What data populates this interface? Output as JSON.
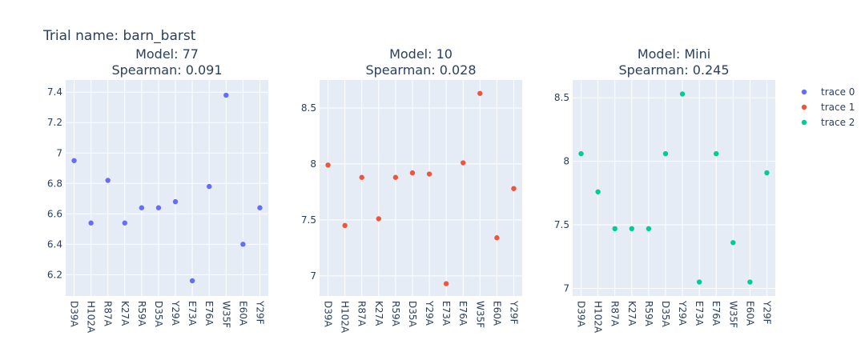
{
  "figure": {
    "title": "Trial name: barn_barst"
  },
  "colors": {
    "plot_bg": "#e5ecf6",
    "grid": "#ffffff",
    "text": "#2a3f5f"
  },
  "legend": {
    "placement": "right",
    "items": [
      {
        "label": "trace 0",
        "color": "#636efa"
      },
      {
        "label": "trace 1",
        "color": "#ef553b"
      },
      {
        "label": "trace 2",
        "color": "#00cc96"
      }
    ]
  },
  "chart_data": [
    {
      "type": "scatter",
      "title_line1": "Model: 77",
      "title_line2": "Spearman: 0.091",
      "series_name": "trace 0",
      "color": "#636efa",
      "categories": [
        "D39A",
        "H102A",
        "R87A",
        "K27A",
        "R59A",
        "D35A",
        "Y29A",
        "E73A",
        "E76A",
        "W35F",
        "E60A",
        "Y29F"
      ],
      "values": [
        6.95,
        6.54,
        6.82,
        6.54,
        6.64,
        6.64,
        6.68,
        6.16,
        6.78,
        7.38,
        6.4,
        6.64
      ],
      "ylim": [
        6.06,
        7.48
      ],
      "yticks": [
        6.2,
        6.4,
        6.6,
        6.8,
        7,
        7.2,
        7.4
      ],
      "ytick_labels": [
        "6.2",
        "6.4",
        "6.6",
        "6.8",
        "7",
        "7.2",
        "7.4"
      ],
      "grid": true
    },
    {
      "type": "scatter",
      "title_line1": "Model: 10",
      "title_line2": "Spearman: 0.028",
      "series_name": "trace 1",
      "color": "#ef553b",
      "categories": [
        "D39A",
        "H102A",
        "R87A",
        "K27A",
        "R59A",
        "D35A",
        "Y29A",
        "E73A",
        "E76A",
        "W35F",
        "E60A",
        "Y29F"
      ],
      "values": [
        7.99,
        7.45,
        7.88,
        7.51,
        7.88,
        7.92,
        7.91,
        6.93,
        8.01,
        8.63,
        7.34,
        7.78
      ],
      "ylim": [
        6.82,
        8.75
      ],
      "yticks": [
        7,
        7.5,
        8,
        8.5
      ],
      "ytick_labels": [
        "7",
        "7.5",
        "8",
        "8.5"
      ],
      "grid": true
    },
    {
      "type": "scatter",
      "title_line1": "Model: Mini",
      "title_line2": "Spearman: 0.245",
      "series_name": "trace 2",
      "color": "#00cc96",
      "categories": [
        "D39A",
        "H102A",
        "R87A",
        "K27A",
        "R59A",
        "D35A",
        "Y29A",
        "E73A",
        "E76A",
        "W35F",
        "E60A",
        "Y29F"
      ],
      "values": [
        8.06,
        7.76,
        7.47,
        7.47,
        7.47,
        8.06,
        8.53,
        7.05,
        8.06,
        7.36,
        7.05,
        7.91
      ],
      "ylim": [
        6.94,
        8.64
      ],
      "yticks": [
        7,
        7.5,
        8,
        8.5
      ],
      "ytick_labels": [
        "7",
        "7.5",
        "8",
        "8.5"
      ],
      "grid": true
    }
  ]
}
